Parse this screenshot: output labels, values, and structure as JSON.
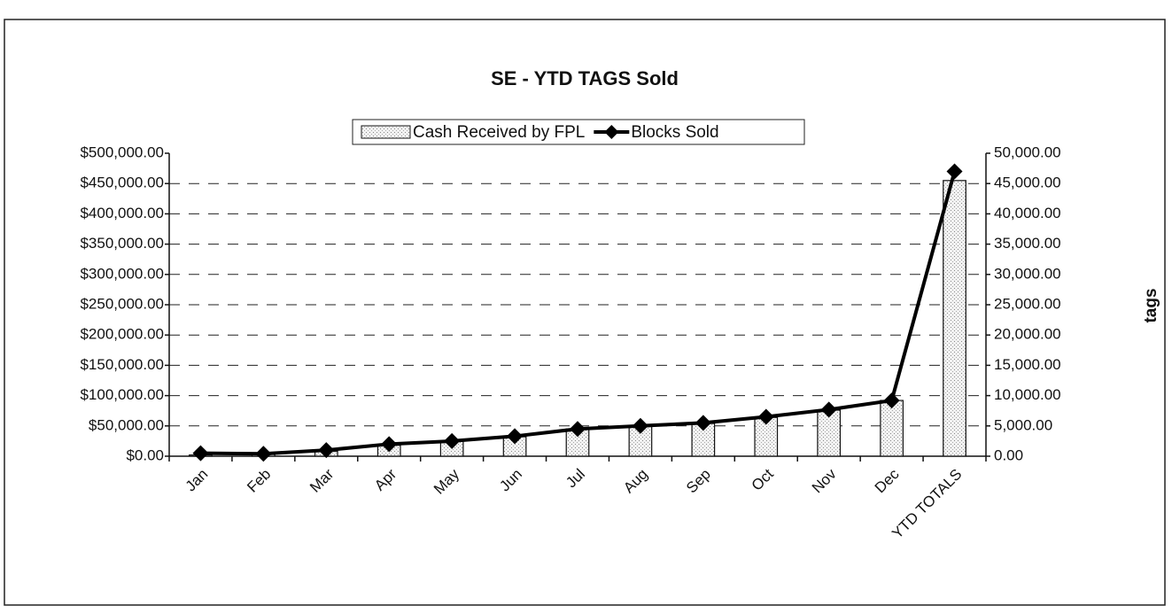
{
  "chart_data": {
    "type": "bar_line",
    "title": "SE - YTD TAGS Sold",
    "y2_label": "tags",
    "categories": [
      "Jan",
      "Feb",
      "Mar",
      "Apr",
      "May",
      "Jun",
      "Jul",
      "Aug",
      "Sep",
      "Oct",
      "Nov",
      "Dec",
      "YTD TOTALS"
    ],
    "series": [
      {
        "name": "Cash Received by FPL",
        "type": "bar",
        "color": "#dcdcdc",
        "values": [
          2000,
          3000,
          8000,
          18000,
          25000,
          32000,
          45000,
          49000,
          54000,
          64000,
          76000,
          92000,
          455000
        ]
      },
      {
        "name": "Blocks Sold",
        "type": "line",
        "axis": "y2",
        "color": "#000000",
        "values": [
          500,
          400,
          1000,
          2000,
          2500,
          3300,
          4500,
          5000,
          5500,
          6500,
          7700,
          9200,
          47000
        ]
      }
    ],
    "ylim": [
      0,
      500000
    ],
    "yticks": [
      {
        "value": 0,
        "label": "$0.00"
      },
      {
        "value": 50000,
        "label": "$50,000.00"
      },
      {
        "value": 100000,
        "label": "$100,000.00"
      },
      {
        "value": 150000,
        "label": "$150,000.00"
      },
      {
        "value": 200000,
        "label": "$200,000.00"
      },
      {
        "value": 250000,
        "label": "$250,000.00"
      },
      {
        "value": 300000,
        "label": "$300,000.00"
      },
      {
        "value": 350000,
        "label": "$350,000.00"
      },
      {
        "value": 400000,
        "label": "$400,000.00"
      },
      {
        "value": 450000,
        "label": "$450,000.00"
      },
      {
        "value": 500000,
        "label": "$500,000.00"
      }
    ],
    "y2lim": [
      0,
      50000
    ],
    "y2ticks": [
      {
        "value": 0,
        "label": "0.00"
      },
      {
        "value": 5000,
        "label": "5,000.00"
      },
      {
        "value": 10000,
        "label": "10,000.00"
      },
      {
        "value": 15000,
        "label": "15,000.00"
      },
      {
        "value": 20000,
        "label": "20,000.00"
      },
      {
        "value": 25000,
        "label": "25,000.00"
      },
      {
        "value": 30000,
        "label": "30,000.00"
      },
      {
        "value": 35000,
        "label": "35,000.00"
      },
      {
        "value": 40000,
        "label": "40,000.00"
      },
      {
        "value": 45000,
        "label": "45,000.00"
      },
      {
        "value": 50000,
        "label": "50,000.00"
      }
    ],
    "grid": true
  }
}
